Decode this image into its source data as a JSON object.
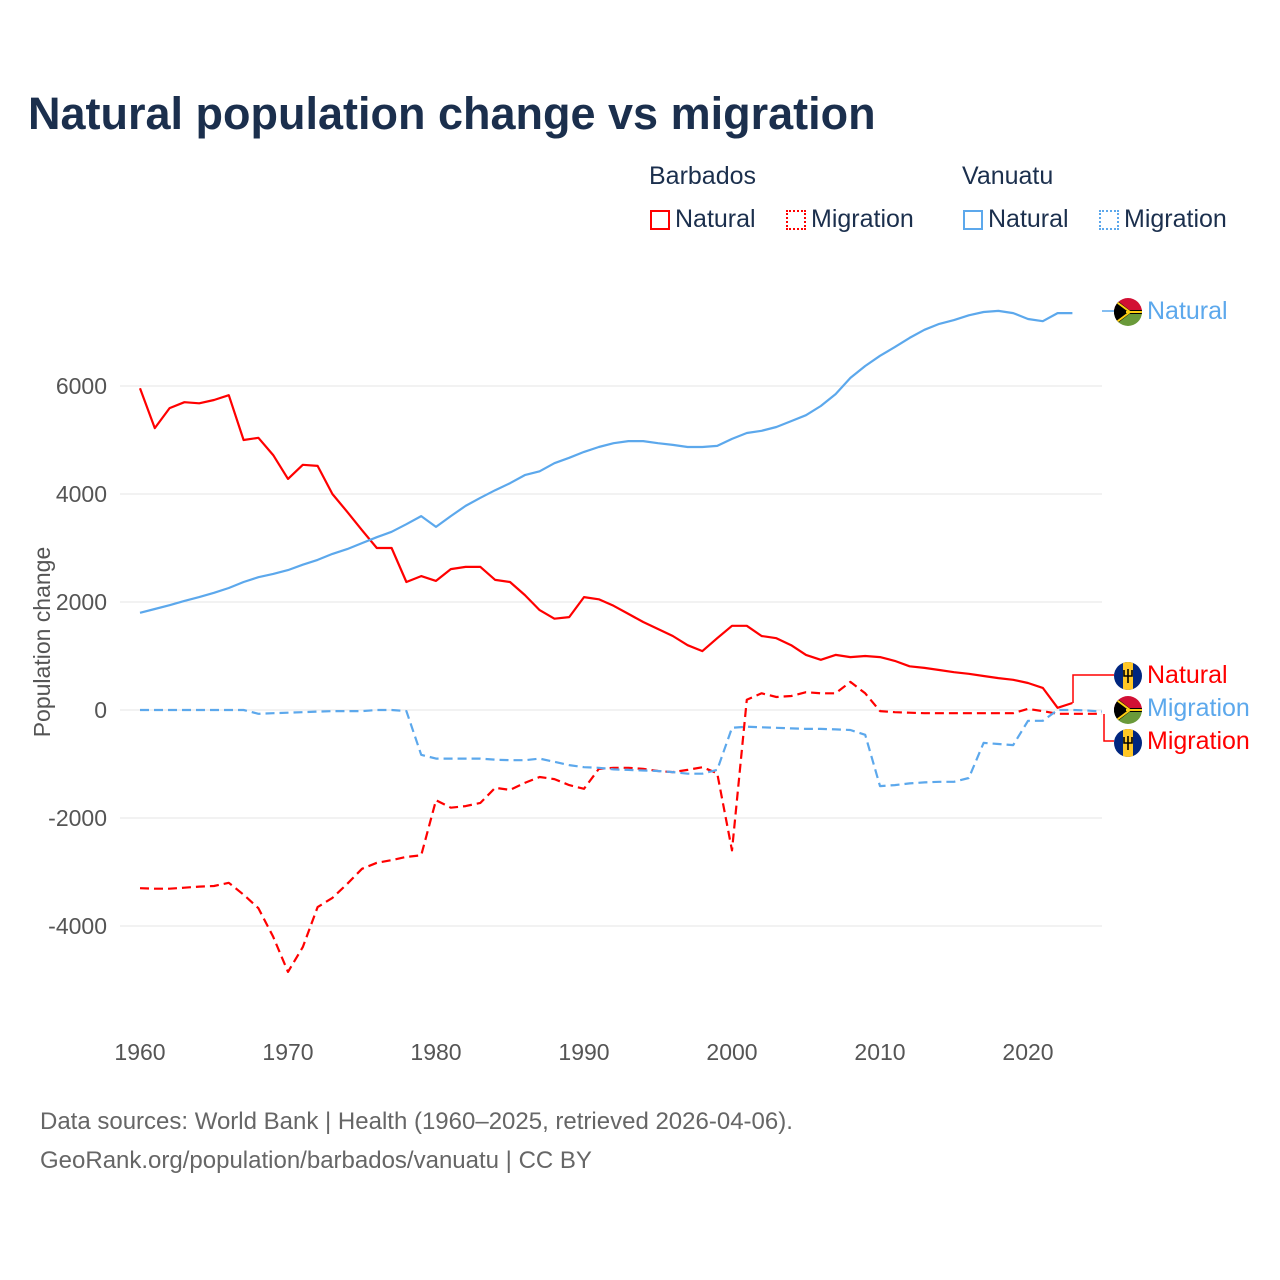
{
  "chart_data": {
    "type": "line",
    "title": "Natural population change vs migration",
    "xlabel": "",
    "ylabel": "Population change",
    "xlim": [
      1960,
      2025
    ],
    "ylim": [
      -5500,
      7800
    ],
    "yticks": [
      -4000,
      -2000,
      0,
      2000,
      4000,
      6000
    ],
    "xticks": [
      1960,
      1970,
      1980,
      1990,
      2000,
      2010,
      2020
    ],
    "grid": true,
    "legend_groups": [
      {
        "country": "Barbados",
        "entries": [
          "Natural",
          "Migration"
        ]
      },
      {
        "country": "Vanuatu",
        "entries": [
          "Natural",
          "Migration"
        ]
      }
    ],
    "series": [
      {
        "name": "Barbados Natural",
        "country": "Barbados",
        "label": "Natural",
        "color": "#ff0000",
        "dashed": false,
        "x_start": 1960,
        "values": [
          5960,
          5220,
          5590,
          5700,
          5680,
          5740,
          5830,
          5000,
          5040,
          4720,
          4280,
          4540,
          4520,
          4000,
          3670,
          3330,
          3000,
          3000,
          2370,
          2480,
          2390,
          2610,
          2650,
          2650,
          2410,
          2370,
          2130,
          1850,
          1690,
          1720,
          2090,
          2050,
          1930,
          1780,
          1630,
          1500,
          1370,
          1200,
          1090,
          1330,
          1560,
          1560,
          1370,
          1330,
          1200,
          1020,
          930,
          1020,
          980,
          1000,
          980,
          910,
          810,
          780,
          740,
          700,
          670,
          630,
          590,
          560,
          500,
          410,
          40,
          130
        ]
      },
      {
        "name": "Barbados Migration",
        "country": "Barbados",
        "label": "Migration",
        "color": "#ff0000",
        "dashed": true,
        "x_start": 1960,
        "values": [
          -3300,
          -3310,
          -3310,
          -3290,
          -3270,
          -3260,
          -3200,
          -3420,
          -3670,
          -4200,
          -4850,
          -4390,
          -3650,
          -3480,
          -3220,
          -2940,
          -2830,
          -2780,
          -2720,
          -2690,
          -1670,
          -1810,
          -1780,
          -1720,
          -1440,
          -1480,
          -1350,
          -1240,
          -1280,
          -1390,
          -1460,
          -1090,
          -1070,
          -1070,
          -1090,
          -1130,
          -1150,
          -1110,
          -1060,
          -1170,
          -2600,
          190,
          310,
          240,
          260,
          330,
          310,
          310,
          520,
          310,
          -20,
          -40,
          -50,
          -60,
          -60,
          -60,
          -60,
          -60,
          -60,
          -60,
          20,
          -20,
          -70,
          -70,
          -70,
          -70
        ]
      },
      {
        "name": "Vanuatu Natural",
        "country": "Vanuatu",
        "label": "Natural",
        "color": "#5ca8ec",
        "dashed": false,
        "x_start": 1960,
        "values": [
          1800,
          1870,
          1940,
          2020,
          2090,
          2170,
          2260,
          2370,
          2460,
          2520,
          2590,
          2690,
          2780,
          2890,
          2980,
          3090,
          3200,
          3300,
          3440,
          3590,
          3390,
          3590,
          3780,
          3930,
          4070,
          4200,
          4350,
          4420,
          4570,
          4670,
          4780,
          4870,
          4940,
          4980,
          4980,
          4940,
          4910,
          4870,
          4870,
          4890,
          5020,
          5130,
          5170,
          5240,
          5350,
          5460,
          5630,
          5850,
          6150,
          6370,
          6560,
          6720,
          6890,
          7040,
          7150,
          7220,
          7310,
          7370,
          7390,
          7350,
          7240,
          7200,
          7350,
          7350
        ]
      },
      {
        "name": "Vanuatu Migration",
        "country": "Vanuatu",
        "label": "Migration",
        "color": "#5ca8ec",
        "dashed": true,
        "x_start": 1960,
        "values": [
          0,
          0,
          0,
          0,
          0,
          0,
          0,
          0,
          -70,
          -60,
          -50,
          -40,
          -30,
          -20,
          -20,
          -20,
          0,
          0,
          -20,
          -830,
          -900,
          -900,
          -900,
          -900,
          -920,
          -930,
          -930,
          -900,
          -960,
          -1020,
          -1060,
          -1070,
          -1100,
          -1110,
          -1120,
          -1130,
          -1150,
          -1180,
          -1180,
          -1110,
          -330,
          -310,
          -320,
          -330,
          -340,
          -350,
          -350,
          -360,
          -370,
          -460,
          -1410,
          -1390,
          -1360,
          -1340,
          -1330,
          -1330,
          -1260,
          -610,
          -630,
          -650,
          -200,
          -200,
          0,
          0,
          -10,
          -30
        ]
      }
    ]
  },
  "legend": {
    "barbados": "Barbados",
    "vanuatu": "Vanuatu",
    "natural": "Natural",
    "migration": "Migration"
  },
  "end_labels": {
    "vanuatu_natural": "Natural",
    "barbados_natural": "Natural",
    "vanuatu_migration": "Migration",
    "barbados_migration": "Migration"
  },
  "footer": {
    "line1": "Data sources: World Bank | Health (1960–2025, retrieved 2026-04-06).",
    "line2": "GeoRank.org/population/barbados/vanuatu | CC BY"
  }
}
